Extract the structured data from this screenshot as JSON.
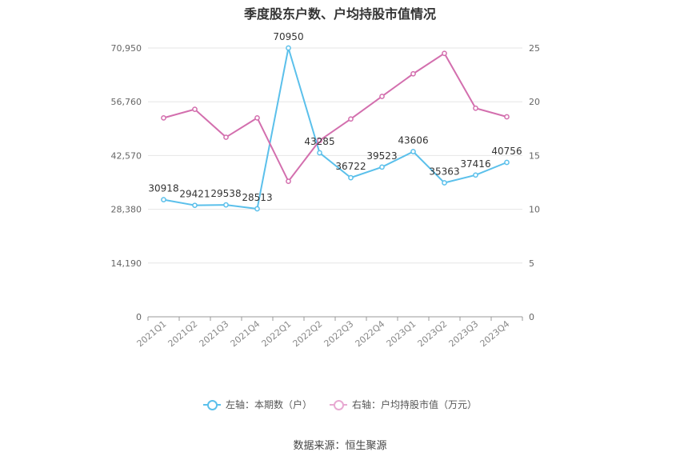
{
  "chart_data": {
    "type": "line",
    "title": "季度股东户数、户均持股市值情况",
    "categories": [
      "2021Q1",
      "2021Q2",
      "2021Q3",
      "2021Q4",
      "2022Q1",
      "2022Q2",
      "2022Q3",
      "2022Q4",
      "2023Q1",
      "2023Q2",
      "2023Q3",
      "2023Q4"
    ],
    "left_axis": {
      "ticks": [
        "0",
        "14,190",
        "28,380",
        "42,570",
        "56,760",
        "70,950"
      ],
      "ylim": [
        0,
        70950
      ]
    },
    "right_axis": {
      "ticks": [
        "0",
        "5",
        "10",
        "15",
        "20",
        "25"
      ],
      "ylim": [
        0,
        25
      ]
    },
    "series": [
      {
        "name": "左轴：本期数（户）",
        "axis": "left",
        "color": "#5bc0eb",
        "values": [
          30918,
          29421,
          29538,
          28513,
          70950,
          43285,
          36722,
          39523,
          43606,
          35363,
          37416,
          40756
        ],
        "labels": [
          "30918",
          "29421",
          "29538",
          "28513",
          "70950",
          "43285",
          "36722",
          "39523",
          "43606",
          "35363",
          "37416",
          "40756"
        ]
      },
      {
        "name": "右轴：户均持股市值（万元）",
        "axis": "right",
        "color": "#d36fae",
        "values": [
          18.5,
          19.3,
          16.7,
          18.5,
          12.6,
          16.4,
          18.4,
          20.5,
          22.6,
          24.5,
          19.4,
          18.6
        ]
      }
    ],
    "grid": true,
    "legend_position": "bottom"
  },
  "source_text": "数据来源：恒生聚源"
}
